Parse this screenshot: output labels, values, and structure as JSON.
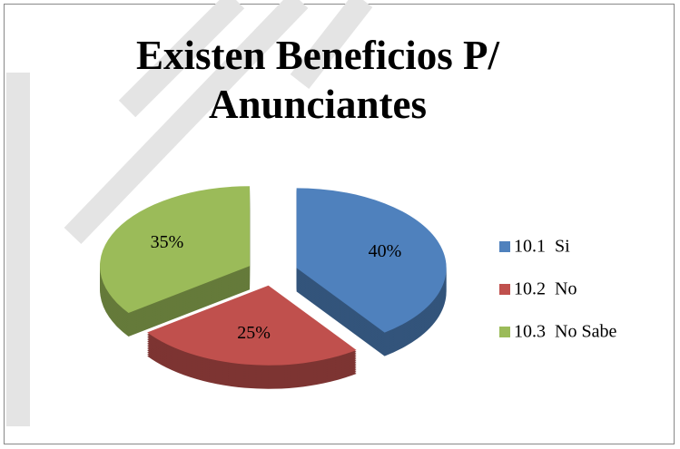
{
  "chart_data": {
    "type": "pie",
    "title": "Existen Beneficios  P/ Anunciantes",
    "categories": [
      "10.1  Si",
      "10.2  No",
      "10.3  No Sabe"
    ],
    "values": [
      40,
      25,
      35
    ],
    "value_labels": [
      "40%",
      "25%",
      "35%"
    ],
    "colors": [
      "#4f81bd",
      "#c0504d",
      "#9bbb59"
    ],
    "legend": "right"
  }
}
